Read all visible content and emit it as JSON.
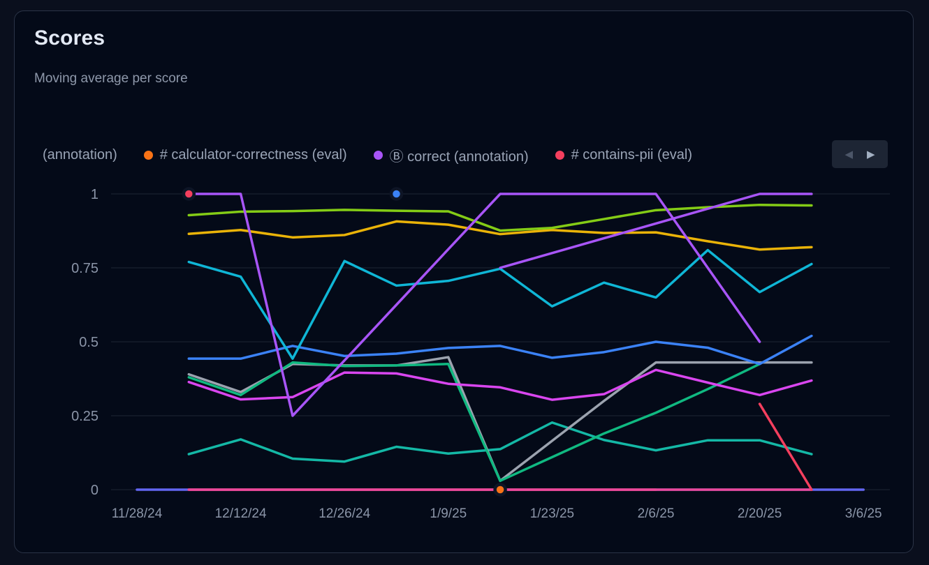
{
  "header": {
    "title": "Scores",
    "subtitle": "Moving average per score"
  },
  "legend": {
    "items": [
      {
        "label": "(annotation)",
        "color": null,
        "note": "clipped item, dot not visible"
      },
      {
        "label": "# calculator-correctness (eval)",
        "color": "#f97316"
      },
      {
        "label": "Ⓑ correct (annotation)",
        "color": "#a855f7"
      },
      {
        "label": "# contains-pii (eval)",
        "color": "#f43f5e"
      }
    ],
    "nav": {
      "prev_icon": "◀",
      "next_icon": "▶"
    }
  },
  "chart_data": {
    "type": "line",
    "title": "Scores",
    "subtitle": "Moving average per score",
    "grid": true,
    "ylim": [
      0,
      1
    ],
    "y_ticks": [
      0,
      0.25,
      0.5,
      0.75,
      1
    ],
    "y_tick_labels": [
      "0",
      "0.25",
      "0.5",
      "0.75",
      "1"
    ],
    "x_weekly_dates": [
      "11/28/24",
      "12/5/24",
      "12/12/24",
      "12/19/24",
      "12/26/24",
      "1/2/25",
      "1/9/25",
      "1/16/25",
      "1/23/25",
      "1/30/25",
      "2/6/25",
      "2/13/25",
      "2/20/25",
      "2/27/25",
      "3/6/25"
    ],
    "x_tick_indices": [
      0,
      2,
      4,
      6,
      8,
      10,
      12,
      14
    ],
    "x_tick_labels": [
      "11/28/24",
      "12/12/24",
      "12/26/24",
      "1/9/25",
      "1/23/25",
      "2/6/25",
      "2/20/25",
      "3/6/25"
    ],
    "series": [
      {
        "id": "indigo-zero",
        "color": "#6366f1",
        "start": 0,
        "values": [
          0,
          0,
          0,
          0,
          0,
          0,
          0,
          0,
          0,
          0,
          0,
          0,
          0,
          0,
          0
        ]
      },
      {
        "id": "rose-zero",
        "color": "#f43f5e",
        "start": 1,
        "values": [
          0,
          0,
          0,
          0,
          0,
          0,
          0,
          0,
          0,
          0
        ]
      },
      {
        "id": "pink-zero",
        "color": "#ec4899",
        "start": 1,
        "values": [
          0,
          0,
          0,
          0,
          0,
          0,
          0,
          0,
          0,
          0,
          0,
          0,
          0
        ]
      },
      {
        "id": "teal-low",
        "color": "#14b8a6",
        "start": 1,
        "values": [
          0.12,
          0.17,
          0.105,
          0.095,
          0.145,
          0.122,
          0.137,
          0.227,
          0.168,
          0.133,
          0.167,
          0.167,
          0.12
        ]
      },
      {
        "id": "gray",
        "color": "#9ca3af",
        "start": 1,
        "values": [
          0.39,
          0.33,
          0.425,
          0.42,
          0.42,
          0.448,
          0.03,
          0.165,
          0.3,
          0.43,
          0.43,
          0.43,
          0.43
        ]
      },
      {
        "id": "emerald",
        "color": "#10b981",
        "start": 1,
        "values": [
          0.38,
          0.32,
          0.43,
          0.418,
          0.42,
          0.425,
          0.03,
          0.11,
          0.19,
          0.26,
          0.34,
          0.425
        ]
      },
      {
        "id": "fuchsia",
        "color": "#d946ef",
        "start": 1,
        "values": [
          0.364,
          0.305,
          0.313,
          0.396,
          0.393,
          0.358,
          0.346,
          0.304,
          0.323,
          0.405,
          0.362,
          0.32,
          0.369
        ]
      },
      {
        "id": "blue",
        "color": "#3b82f6",
        "start": 1,
        "values": [
          0.443,
          0.443,
          0.486,
          0.452,
          0.46,
          0.479,
          0.486,
          0.446,
          0.465,
          0.5,
          0.48,
          0.425,
          0.52
        ]
      },
      {
        "id": "cyan",
        "color": "#0fb6d6",
        "start": 1,
        "values": [
          0.77,
          0.72,
          0.443,
          0.773,
          0.69,
          0.706,
          0.747,
          0.62,
          0.7,
          0.65,
          0.81,
          0.668,
          0.763
        ]
      },
      {
        "id": "gold",
        "color": "#eab308",
        "start": 1,
        "values": [
          0.865,
          0.878,
          0.853,
          0.861,
          0.907,
          0.896,
          0.864,
          0.878,
          0.868,
          0.87,
          0.84,
          0.812,
          0.82
        ]
      },
      {
        "id": "lime",
        "color": "#84cc16",
        "start": 1,
        "values": [
          0.928,
          0.94,
          0.942,
          0.946,
          0.943,
          0.941,
          0.876,
          0.885,
          0.915,
          0.945,
          0.955,
          0.963,
          0.961
        ]
      },
      {
        "id": "violet-main",
        "color": "#a855f7",
        "start": 1,
        "values": [
          1,
          1,
          0.25,
          0.437,
          0.625,
          0.813,
          1,
          1,
          1,
          1,
          0.75,
          0.5
        ]
      },
      {
        "id": "violet-rise",
        "color": "#a855f7",
        "start": 7,
        "values": [
          0.75,
          0.8,
          0.85,
          0.9,
          0.95,
          1,
          1
        ]
      },
      {
        "id": "rose-spike",
        "color": "#f43f5e",
        "start": 12,
        "values": [
          0.29,
          0
        ]
      }
    ],
    "markers": [
      {
        "x_index": 1,
        "date": "12/5/24",
        "value": 1.0,
        "color": "#f43f5e",
        "name": "rose-point-marker"
      },
      {
        "x_index": 5,
        "date": "1/2/25",
        "value": 1.0,
        "color": "#3b82f6",
        "name": "blue-point-marker"
      },
      {
        "x_index": 7,
        "date": "1/16/25",
        "value": 0.0,
        "color": "#f97316",
        "name": "orange-point-marker"
      }
    ]
  }
}
